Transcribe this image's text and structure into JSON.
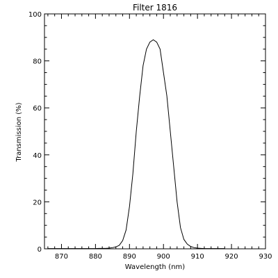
{
  "chart_data": {
    "type": "line",
    "title": "Filter 1816",
    "xlabel": "Wavelength (nm)",
    "ylabel": "Transmission (%)",
    "xlim": [
      865,
      930
    ],
    "ylim": [
      0,
      100
    ],
    "x_ticks": [
      870,
      880,
      890,
      900,
      910,
      920,
      930
    ],
    "y_ticks": [
      0,
      20,
      40,
      60,
      80,
      100
    ],
    "x_minor_step": 2,
    "y_minor_step": 5,
    "grid": false,
    "line_color": "#000000",
    "series": [
      {
        "x": [
          866,
          867,
          868,
          869,
          870,
          871,
          872,
          873,
          874,
          875,
          876,
          877,
          878,
          879,
          880,
          881,
          882,
          883,
          884,
          885,
          886,
          887,
          888,
          889,
          890,
          891,
          892,
          893,
          894,
          895,
          896,
          897,
          898,
          899,
          900,
          901,
          902,
          903,
          904,
          905,
          906,
          907,
          908,
          909,
          910,
          911,
          912,
          913,
          914,
          915,
          916,
          917,
          918
        ],
        "y": [
          0.1,
          0.1,
          0.1,
          0.1,
          0.1,
          0.1,
          0.1,
          0.1,
          0.1,
          0.1,
          0.1,
          0.1,
          0.1,
          0.1,
          0.1,
          0.2,
          0.2,
          0.2,
          0.3,
          0.5,
          0.8,
          1.5,
          3.5,
          8,
          18,
          32,
          50,
          65,
          78,
          85,
          88,
          89,
          88,
          85,
          75,
          65,
          50,
          35,
          20,
          9,
          4,
          2,
          1,
          0.5,
          0.3,
          0.2,
          0.1,
          0.1,
          0.1,
          0.1,
          0.1,
          0.1,
          0.1
        ]
      }
    ]
  }
}
